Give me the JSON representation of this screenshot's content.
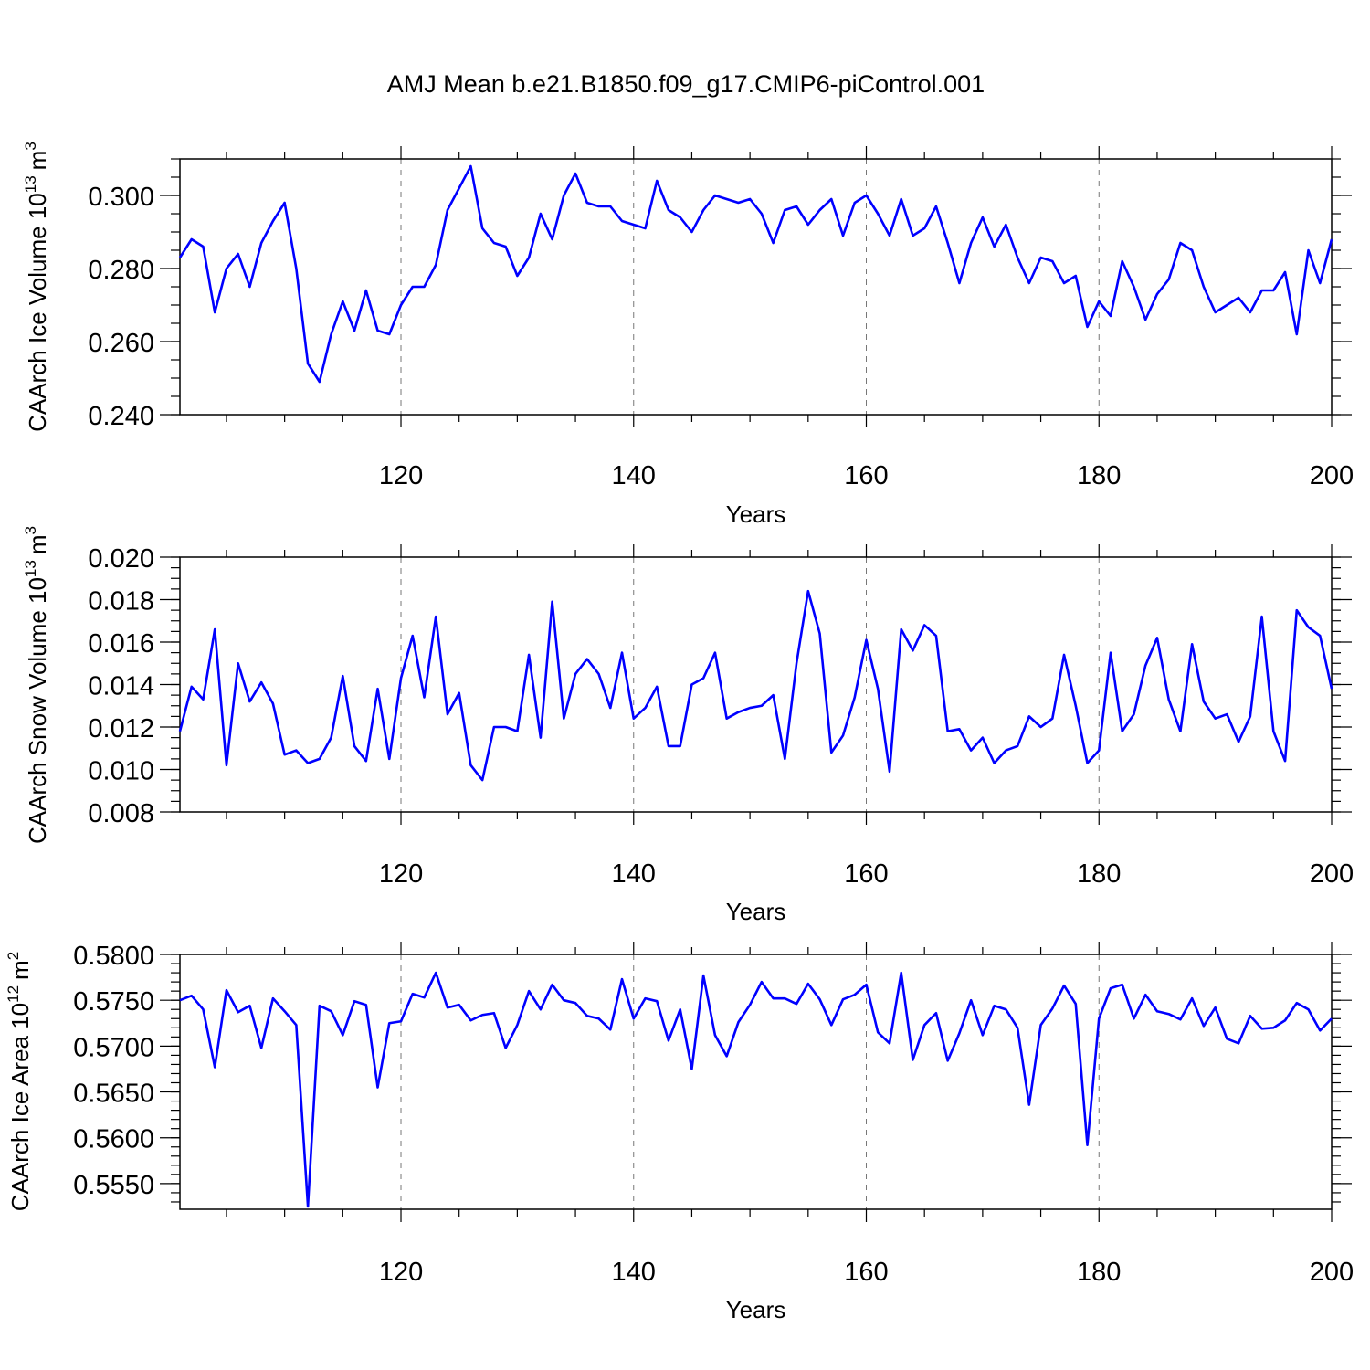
{
  "chart_data": {
    "title": "AMJ Mean b.e21.B1850.f09_g17.CMIP6-piControl.001",
    "panels": [
      {
        "type": "line",
        "ylabel": "CAArch Ice Volume",
        "yunit_base": "10",
        "yunit_exp": "13",
        "yunit_unit": "m",
        "yunit_unit_exp": "3",
        "xlabel": "Years",
        "xlim": [
          101,
          200
        ],
        "ylim": [
          0.24,
          0.31
        ],
        "yticks": [
          0.24,
          0.26,
          0.28,
          0.3
        ],
        "yticks_labels": [
          "0.240",
          "0.260",
          "0.280",
          "0.300"
        ],
        "yminor_step": 0.005,
        "xticks": [
          120,
          140,
          160,
          180,
          200
        ],
        "xticks_labels": [
          "120",
          "140",
          "160",
          "180",
          "200"
        ],
        "xgrid": [
          120,
          140,
          160,
          180
        ],
        "xminor_step": 5,
        "x_start": 101,
        "values": [
          0.283,
          0.288,
          0.286,
          0.268,
          0.28,
          0.284,
          0.275,
          0.287,
          0.293,
          0.298,
          0.28,
          0.254,
          0.249,
          0.262,
          0.271,
          0.263,
          0.274,
          0.263,
          0.262,
          0.27,
          0.275,
          0.275,
          0.281,
          0.296,
          0.302,
          0.308,
          0.291,
          0.287,
          0.286,
          0.278,
          0.283,
          0.295,
          0.288,
          0.3,
          0.306,
          0.298,
          0.297,
          0.297,
          0.293,
          0.292,
          0.291,
          0.304,
          0.296,
          0.294,
          0.29,
          0.296,
          0.3,
          0.299,
          0.298,
          0.299,
          0.295,
          0.287,
          0.296,
          0.297,
          0.292,
          0.296,
          0.299,
          0.289,
          0.298,
          0.3,
          0.295,
          0.289,
          0.299,
          0.289,
          0.291,
          0.297,
          0.287,
          0.276,
          0.287,
          0.294,
          0.286,
          0.292,
          0.283,
          0.276,
          0.283,
          0.282,
          0.276,
          0.278,
          0.264,
          0.271,
          0.267,
          0.282,
          0.275,
          0.266,
          0.273,
          0.277,
          0.287,
          0.285,
          0.275,
          0.268,
          0.27,
          0.272,
          0.268,
          0.274,
          0.274,
          0.279,
          0.262,
          0.285,
          0.276,
          0.288
        ]
      },
      {
        "type": "line",
        "ylabel": "CAArch Snow Volume",
        "yunit_base": "10",
        "yunit_exp": "13",
        "yunit_unit": "m",
        "yunit_unit_exp": "3",
        "xlabel": "Years",
        "xlim": [
          101,
          200
        ],
        "ylim": [
          0.008,
          0.02
        ],
        "yticks": [
          0.008,
          0.01,
          0.012,
          0.014,
          0.016,
          0.018,
          0.02
        ],
        "yticks_labels": [
          "0.008",
          "0.010",
          "0.012",
          "0.014",
          "0.016",
          "0.018",
          "0.020"
        ],
        "yminor_step": 0.0005,
        "xticks": [
          120,
          140,
          160,
          180,
          200
        ],
        "xticks_labels": [
          "120",
          "140",
          "160",
          "180",
          "200"
        ],
        "xgrid": [
          120,
          140,
          160,
          180
        ],
        "xminor_step": 5,
        "x_start": 101,
        "values": [
          0.0118,
          0.0139,
          0.0133,
          0.0166,
          0.0102,
          0.015,
          0.0132,
          0.0141,
          0.0131,
          0.0107,
          0.0109,
          0.0103,
          0.0105,
          0.0115,
          0.0144,
          0.0111,
          0.0104,
          0.0138,
          0.0105,
          0.0143,
          0.0163,
          0.0134,
          0.0172,
          0.0126,
          0.0136,
          0.0102,
          0.0095,
          0.012,
          0.012,
          0.0118,
          0.0154,
          0.0115,
          0.0179,
          0.0124,
          0.0145,
          0.0152,
          0.0145,
          0.0129,
          0.0155,
          0.0124,
          0.0129,
          0.0139,
          0.0111,
          0.0111,
          0.014,
          0.0143,
          0.0155,
          0.0124,
          0.0127,
          0.0129,
          0.013,
          0.0135,
          0.0105,
          0.015,
          0.0184,
          0.0164,
          0.0108,
          0.0116,
          0.0134,
          0.0161,
          0.0138,
          0.0099,
          0.0166,
          0.0156,
          0.0168,
          0.0163,
          0.0118,
          0.0119,
          0.0109,
          0.0115,
          0.0103,
          0.0109,
          0.0111,
          0.0125,
          0.012,
          0.0124,
          0.0154,
          0.013,
          0.0103,
          0.0109,
          0.0155,
          0.0118,
          0.0126,
          0.0149,
          0.0162,
          0.0133,
          0.0118,
          0.0159,
          0.0132,
          0.0124,
          0.0126,
          0.0113,
          0.0125,
          0.0172,
          0.0118,
          0.0104,
          0.0175,
          0.0167,
          0.0163,
          0.0138
        ]
      },
      {
        "type": "line",
        "ylabel": "CAArch Ice Area",
        "yunit_base": "10",
        "yunit_exp": "12",
        "yunit_unit": "m",
        "yunit_unit_exp": "2",
        "xlabel": "Years",
        "xlim": [
          101,
          200
        ],
        "ylim": [
          0.5522,
          0.58
        ],
        "yticks": [
          0.555,
          0.56,
          0.565,
          0.57,
          0.575,
          0.58
        ],
        "yticks_labels": [
          "0.5550",
          "0.5600",
          "0.5650",
          "0.5700",
          "0.5750",
          "0.5800"
        ],
        "yminor_step": 0.001,
        "xticks": [
          120,
          140,
          160,
          180,
          200
        ],
        "xticks_labels": [
          "120",
          "140",
          "160",
          "180",
          "200"
        ],
        "xgrid": [
          120,
          140,
          160,
          180
        ],
        "xminor_step": 5,
        "x_start": 101,
        "values": [
          0.575,
          0.5755,
          0.574,
          0.5677,
          0.5761,
          0.5737,
          0.5744,
          0.5698,
          0.5752,
          0.5738,
          0.5723,
          0.5525,
          0.5744,
          0.5738,
          0.5712,
          0.5749,
          0.5745,
          0.5655,
          0.5725,
          0.5727,
          0.5757,
          0.5753,
          0.578,
          0.5742,
          0.5745,
          0.5728,
          0.5734,
          0.5736,
          0.5698,
          0.5723,
          0.576,
          0.574,
          0.5767,
          0.575,
          0.5747,
          0.5733,
          0.573,
          0.5718,
          0.5773,
          0.573,
          0.5752,
          0.5749,
          0.5706,
          0.574,
          0.5675,
          0.5777,
          0.5712,
          0.5689,
          0.5726,
          0.5745,
          0.577,
          0.5752,
          0.5752,
          0.5746,
          0.5768,
          0.5751,
          0.5723,
          0.5751,
          0.5756,
          0.5767,
          0.5715,
          0.5703,
          0.578,
          0.5685,
          0.5723,
          0.5736,
          0.5684,
          0.5714,
          0.575,
          0.5712,
          0.5744,
          0.574,
          0.572,
          0.5636,
          0.5723,
          0.5741,
          0.5766,
          0.5746,
          0.5592,
          0.573,
          0.5763,
          0.5767,
          0.573,
          0.5756,
          0.5738,
          0.5735,
          0.5729,
          0.5752,
          0.5722,
          0.5742,
          0.5708,
          0.5703,
          0.5733,
          0.5719,
          0.572,
          0.5728,
          0.5747,
          0.574,
          0.5717,
          0.573
        ]
      }
    ]
  }
}
